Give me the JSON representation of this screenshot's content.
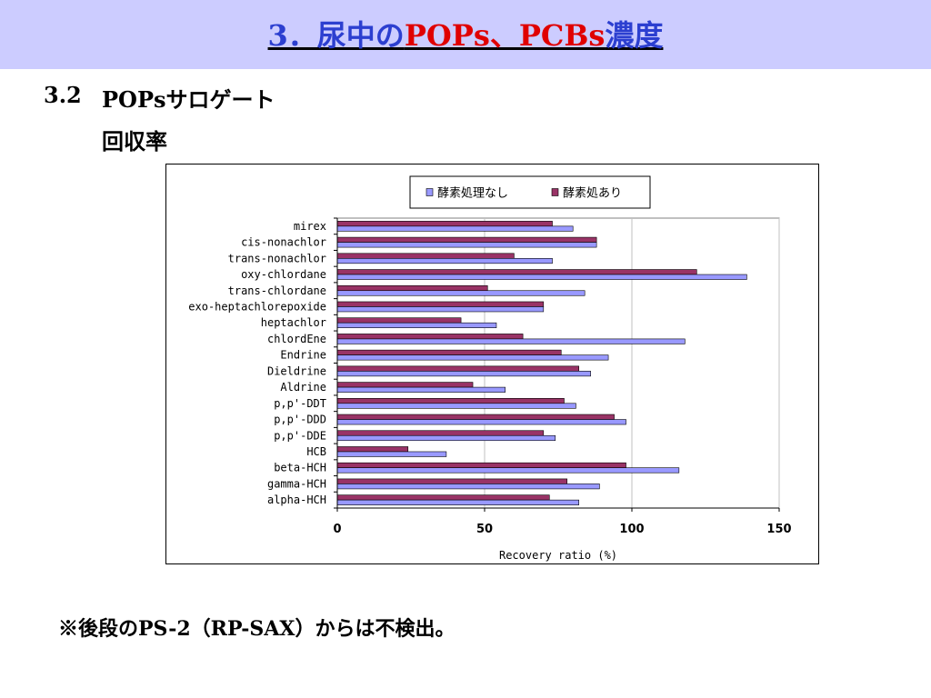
{
  "header": {
    "title_prefix": "3．尿中の",
    "title_highlight": "POPs、PCBs",
    "title_suffix": "濃度"
  },
  "section": {
    "number": "3.2",
    "line1": "POPsサロゲート",
    "line2": "回収率"
  },
  "chart_data": {
    "type": "bar",
    "orientation": "horizontal",
    "categories": [
      "mirex",
      "cis-nonachlor",
      "trans-nonachlor",
      "oxy-chlordane",
      "trans-chlordane",
      "exo-heptachlorepoxide",
      "heptachlor",
      "chlordEne",
      "Endrine",
      "Dieldrine",
      "Aldrine",
      "p,p'-DDT",
      "p,p'-DDD",
      "p,p'-DDE",
      "HCB",
      "beta-HCH",
      "gamma-HCH",
      "alpha-HCH"
    ],
    "series": [
      {
        "name": "酵素処理なし",
        "color": "#9999ff",
        "values": [
          80,
          88,
          73,
          139,
          84,
          70,
          54,
          118,
          92,
          86,
          57,
          81,
          98,
          74,
          37,
          116,
          89,
          82
        ]
      },
      {
        "name": "酵素処あり",
        "color": "#993366",
        "values": [
          73,
          88,
          60,
          122,
          51,
          70,
          42,
          63,
          76,
          82,
          46,
          77,
          94,
          70,
          24,
          98,
          78,
          72
        ]
      }
    ],
    "xlabel": "Recovery ratio (%)",
    "xlim": [
      0,
      150
    ],
    "xticks": [
      0,
      50,
      100,
      150
    ],
    "grid": true,
    "legend_position": "top"
  },
  "footnote": "※後段のPS-2（RP-SAX）からは不検出。"
}
